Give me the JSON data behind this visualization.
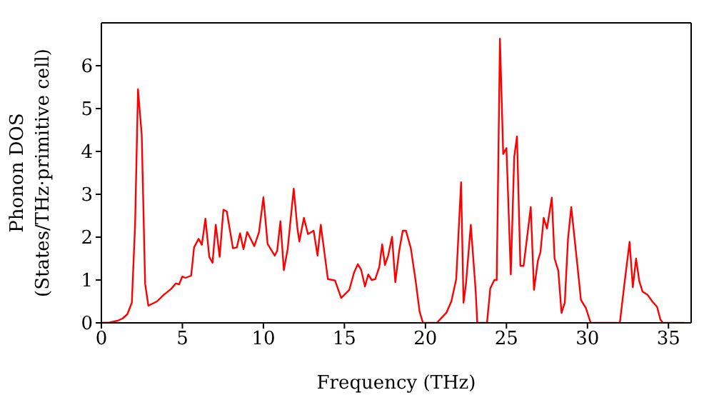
{
  "chart_data": {
    "type": "line",
    "xlabel": "Frequency (THz)",
    "ylabel": "Phonon DOS\n(States/THz·primitive cell)",
    "xlim": [
      0,
      36.4
    ],
    "xticks": [
      0,
      5,
      10,
      15,
      20,
      25,
      30,
      35
    ],
    "ylim": [
      0,
      7
    ],
    "yticks": [
      0,
      1,
      2,
      3,
      4,
      5,
      6
    ],
    "marker": "none",
    "line_style": "solid",
    "series": [
      {
        "color": "#ff0000",
        "x": [
          0,
          0.5,
          1.0,
          1.3,
          1.6,
          1.88,
          2.08,
          2.26,
          2.49,
          2.7,
          2.9,
          3.43,
          3.87,
          4.3,
          4.6,
          4.8,
          4.99,
          5.19,
          5.54,
          5.72,
          6.0,
          6.2,
          6.42,
          6.66,
          6.86,
          7.06,
          7.3,
          7.53,
          7.74,
          8.12,
          8.36,
          8.56,
          8.77,
          9.0,
          9.44,
          9.73,
          10.0,
          10.26,
          10.7,
          10.85,
          11.05,
          11.26,
          11.5,
          11.87,
          12.1,
          12.22,
          12.5,
          12.75,
          13.1,
          13.34,
          13.54,
          13.98,
          14.42,
          14.8,
          15.3,
          15.6,
          15.83,
          16.03,
          16.27,
          16.47,
          16.68,
          16.9,
          17.15,
          17.33,
          17.5,
          17.7,
          17.94,
          18.14,
          18.38,
          18.6,
          18.8,
          19.1,
          19.4,
          19.64,
          19.85,
          20.7,
          21.3,
          21.6,
          21.9,
          22.2,
          22.35,
          22.5,
          22.8,
          23.1,
          23.2,
          23.8,
          24.0,
          24.25,
          24.4,
          24.6,
          24.8,
          25.0,
          25.27,
          25.48,
          25.65,
          25.86,
          26.06,
          26.5,
          26.7,
          26.94,
          27.1,
          27.3,
          27.5,
          27.8,
          27.97,
          28.2,
          28.4,
          28.6,
          28.8,
          29.0,
          29.3,
          29.6,
          29.9,
          30.2,
          32.0,
          32.3,
          32.6,
          32.8,
          33.0,
          33.2,
          33.4,
          33.7,
          34.0,
          34.3,
          34.5,
          34.65,
          36.0
        ],
        "values": [
          0,
          0.01,
          0.05,
          0.1,
          0.2,
          0.47,
          2.29,
          5.45,
          4.38,
          0.91,
          0.4,
          0.5,
          0.66,
          0.79,
          0.92,
          0.9,
          1.08,
          1.05,
          1.1,
          1.76,
          1.96,
          1.82,
          2.43,
          1.54,
          1.4,
          2.29,
          1.54,
          2.64,
          2.6,
          1.74,
          1.76,
          2.09,
          1.72,
          2.12,
          1.79,
          2.12,
          2.93,
          1.84,
          1.57,
          1.68,
          2.37,
          1.23,
          1.73,
          3.13,
          2.2,
          1.9,
          2.45,
          2.07,
          2.15,
          1.57,
          2.29,
          1.02,
          0.99,
          0.58,
          0.77,
          1.18,
          1.37,
          1.24,
          0.85,
          1.13,
          1.0,
          1.02,
          1.3,
          1.83,
          1.35,
          1.57,
          2.01,
          0.95,
          1.68,
          2.15,
          2.15,
          1.74,
          0.97,
          0.26,
          0,
          0,
          0.24,
          0.5,
          1.02,
          3.28,
          0.47,
          0.9,
          2.29,
          0.75,
          0,
          0,
          0.8,
          1.0,
          1.0,
          6.63,
          3.94,
          4.08,
          1.13,
          3.87,
          4.35,
          1.33,
          1.33,
          2.7,
          0.77,
          1.45,
          1.65,
          2.45,
          2.2,
          2.92,
          1.5,
          1.22,
          0.23,
          0.47,
          1.96,
          2.7,
          1.63,
          0.53,
          0.35,
          0,
          0,
          0.97,
          1.89,
          0.83,
          1.5,
          0.97,
          0.73,
          0.66,
          0.5,
          0.37,
          0.08,
          0,
          0
        ]
      }
    ]
  }
}
